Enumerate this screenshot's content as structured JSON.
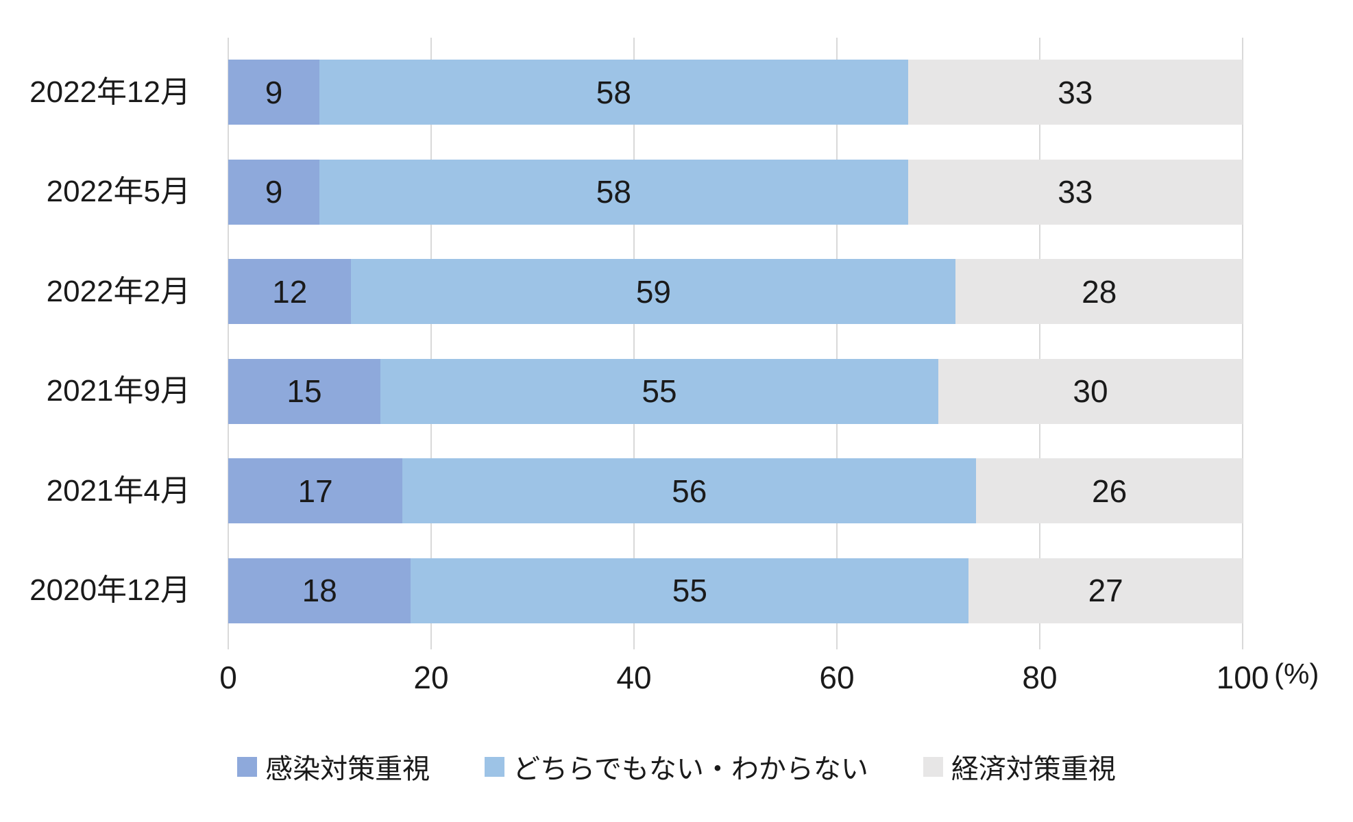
{
  "colors": {
    "background": "#FFFFFF",
    "gridline": "#D9D9D9",
    "text": "#1A1A1A",
    "series_infection": "#8EA9DB",
    "series_neither": "#9DC3E6",
    "series_economy": "#E7E6E6"
  },
  "chart_data": {
    "type": "bar",
    "orientation": "horizontal",
    "stacked": true,
    "title": "",
    "xlabel": "(%)",
    "ylabel": "",
    "xlim": [
      0,
      100
    ],
    "x_ticks": [
      0,
      20,
      40,
      60,
      80,
      100
    ],
    "grid": true,
    "legend_position": "bottom",
    "categories": [
      "2022年12月",
      "2022年5月",
      "2022年2月",
      "2021年9月",
      "2021年4月",
      "2020年12月"
    ],
    "series": [
      {
        "name": "感染対策重視",
        "color": "#8EA9DB",
        "values": [
          9,
          9,
          12,
          15,
          17,
          18
        ]
      },
      {
        "name": "どちらでもない・わからない",
        "color": "#9DC3E6",
        "values": [
          58,
          58,
          59,
          55,
          56,
          55
        ]
      },
      {
        "name": "経済対策重視",
        "color": "#E7E6E6",
        "values": [
          33,
          33,
          28,
          30,
          26,
          27
        ]
      }
    ]
  }
}
